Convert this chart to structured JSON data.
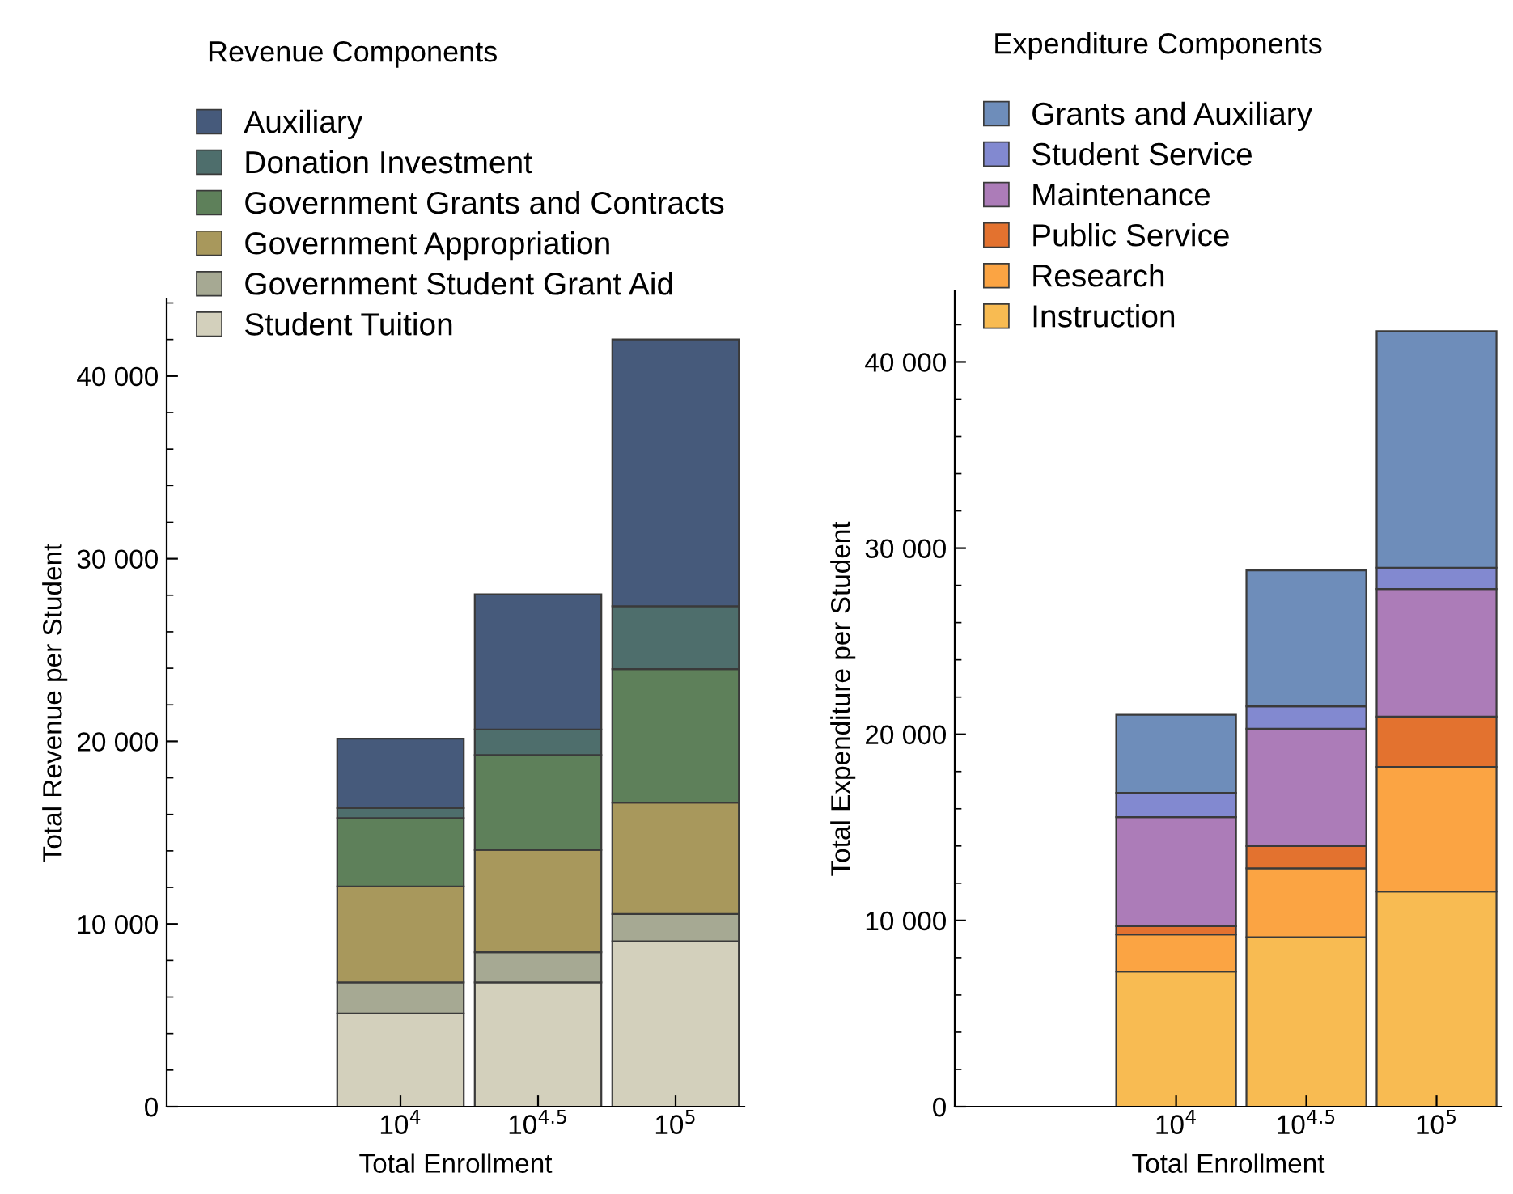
{
  "chart_data": [
    {
      "type": "bar",
      "stacked": true,
      "title": "Revenue Components",
      "xlabel": "Total Enrollment",
      "ylabel": "Total Revenue per Student",
      "categories": [
        "10$^{4}$",
        "10$^{4.5}$",
        "10$^{5}$"
      ],
      "legend": "top left",
      "ylim": [
        0,
        44200
      ],
      "yticks": [
        0,
        {
          "value": 10000,
          "label": "10 000"
        },
        {
          "value": 20000,
          "label": "20 000"
        },
        {
          "value": 30000,
          "label": "30 000"
        },
        {
          "value": 40000,
          "label": "40 000"
        }
      ],
      "grid": false,
      "series": [
        {
          "name": "Student Tuition",
          "color": "#d3d0bc",
          "values": [
            5100,
            6800,
            9050
          ]
        },
        {
          "name": "Government Student Grant Aid",
          "color": "#a6a993",
          "values": [
            1700,
            1650,
            1500
          ]
        },
        {
          "name": "Government Appropriation",
          "color": "#a8985c",
          "values": [
            5250,
            5600,
            6100
          ]
        },
        {
          "name": "Government Grants and Contracts",
          "color": "#5e805a",
          "values": [
            3750,
            5200,
            7300
          ]
        },
        {
          "name": "Donation Investment",
          "color": "#4e6e6c",
          "values": [
            550,
            1400,
            3450
          ]
        },
        {
          "name": "Auxiliary",
          "color": "#465a7b",
          "values": [
            3800,
            7400,
            14600
          ]
        }
      ]
    },
    {
      "type": "bar",
      "stacked": true,
      "title": "Expenditure Components",
      "xlabel": "Total Enrollment",
      "ylabel": "Total Expenditure per Student",
      "categories": [
        "10$^{4}$",
        "10$^{4.5}$",
        "10$^{5}$"
      ],
      "legend": "top left",
      "ylim": [
        0,
        43800
      ],
      "yticks": [
        0,
        {
          "value": 10000,
          "label": "10 000"
        },
        {
          "value": 20000,
          "label": "20 000"
        },
        {
          "value": 30000,
          "label": "30 000"
        },
        {
          "value": 40000,
          "label": "40 000"
        }
      ],
      "grid": false,
      "series": [
        {
          "name": "Instruction",
          "color": "#f8bb52",
          "values": [
            7250,
            9100,
            11550
          ]
        },
        {
          "name": "Research",
          "color": "#fba443",
          "values": [
            2000,
            3700,
            6700
          ]
        },
        {
          "name": "Public Service",
          "color": "#e3722f",
          "values": [
            450,
            1200,
            2700
          ]
        },
        {
          "name": "Maintenance",
          "color": "#ac7cb8",
          "values": [
            5850,
            6300,
            6850
          ]
        },
        {
          "name": "Student Service",
          "color": "#8289d0",
          "values": [
            1300,
            1200,
            1150
          ]
        },
        {
          "name": "Grants and Auxiliary",
          "color": "#6e8dba",
          "values": [
            4200,
            7300,
            12700
          ]
        }
      ]
    }
  ]
}
